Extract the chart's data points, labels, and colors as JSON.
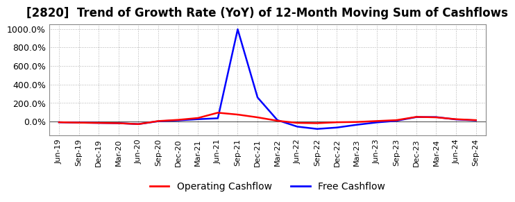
{
  "title": "[2820]  Trend of Growth Rate (YoY) of 12-Month Moving Sum of Cashflows",
  "title_fontsize": 12,
  "ylim": [
    -150,
    1050
  ],
  "yticks": [
    0,
    200,
    400,
    600,
    800,
    1000
  ],
  "background_color": "#ffffff",
  "plot_bg_color": "#ffffff",
  "grid_color": "#b0b0b0",
  "legend_labels": [
    "Operating Cashflow",
    "Free Cashflow"
  ],
  "legend_colors": [
    "#ff0000",
    "#0000ff"
  ],
  "x_labels": [
    "Jun-19",
    "Sep-19",
    "Dec-19",
    "Mar-20",
    "Jun-20",
    "Sep-20",
    "Dec-20",
    "Mar-21",
    "Jun-21",
    "Sep-21",
    "Dec-21",
    "Mar-22",
    "Jun-22",
    "Sep-22",
    "Dec-22",
    "Mar-23",
    "Jun-23",
    "Sep-23",
    "Dec-23",
    "Mar-24",
    "Jun-24",
    "Sep-24"
  ],
  "operating_cashflow": [
    -8,
    -12,
    -15,
    -18,
    -28,
    5,
    18,
    38,
    95,
    75,
    45,
    8,
    -15,
    -18,
    -8,
    -5,
    5,
    15,
    50,
    45,
    25,
    15
  ],
  "free_cashflow": [
    -8,
    -12,
    -15,
    -18,
    -28,
    3,
    12,
    25,
    35,
    995,
    260,
    15,
    -55,
    -80,
    -65,
    -35,
    -10,
    8,
    48,
    48,
    22,
    12
  ]
}
